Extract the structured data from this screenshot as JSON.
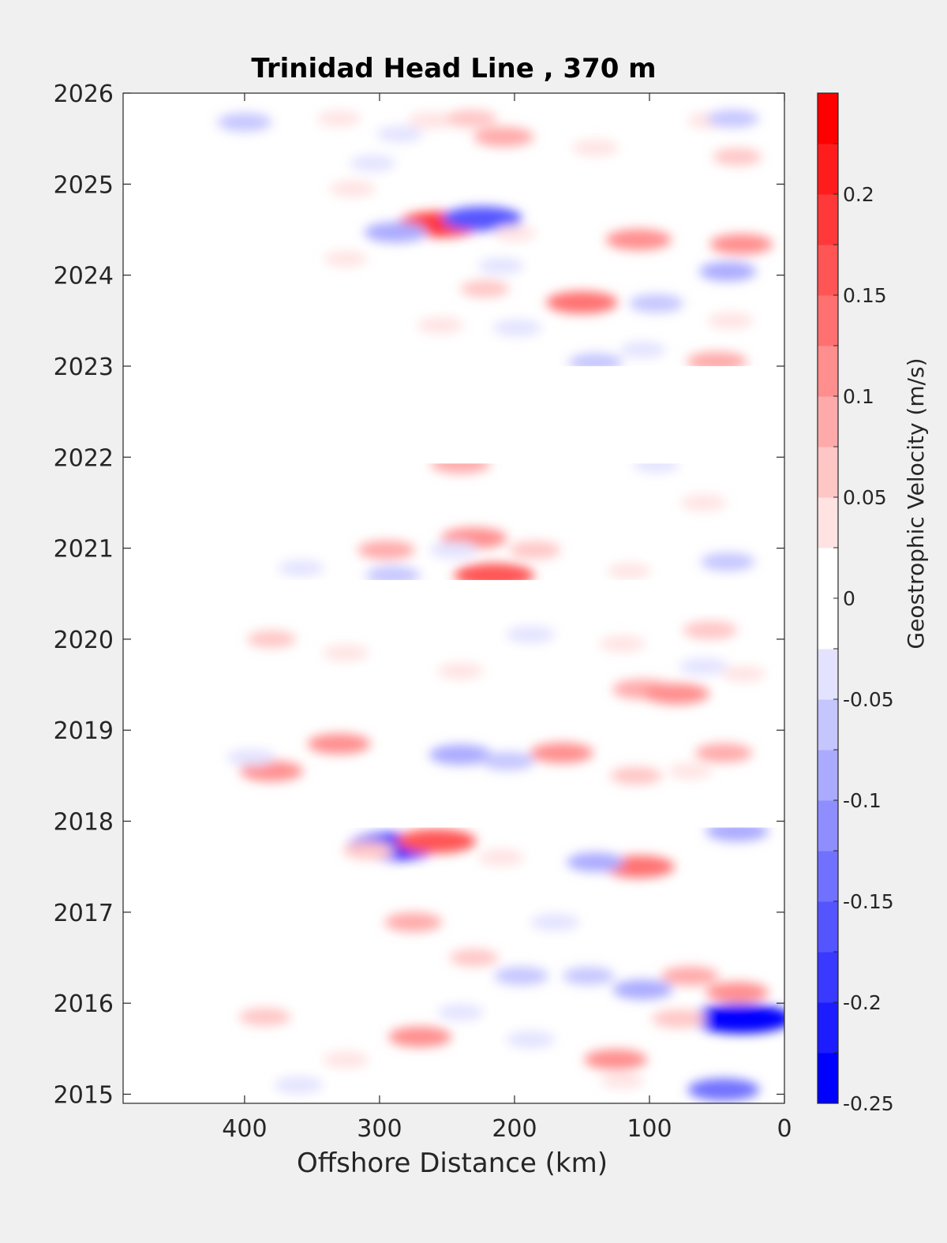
{
  "chart_data": {
    "type": "heatmap",
    "title": "Trinidad Head Line , 370 m",
    "xlabel": "Offshore Distance (km)",
    "ylabel": "",
    "x_ticks": [
      "400",
      "300",
      "200",
      "100",
      "0"
    ],
    "y_ticks": [
      "2026",
      "2025",
      "2024",
      "2023",
      "2022",
      "2021",
      "2020",
      "2019",
      "2018",
      "2017",
      "2016",
      "2015"
    ],
    "xlim": [
      490,
      0
    ],
    "x_reversed": true,
    "ylim": [
      2014.9,
      2026.0
    ],
    "grid": false,
    "colorbar": {
      "label": "Geostrophic Velocity (m/s)",
      "ticks": [
        "0.2",
        "0.15",
        "0.1",
        "0.05",
        "0",
        "-0.05",
        "-0.1",
        "-0.15",
        "-0.2",
        "-0.25"
      ],
      "range": [
        -0.25,
        0.25
      ],
      "levels": 20,
      "colors": {
        "positive": "#ff0000",
        "zero": "#ffffff",
        "negative": "#0000ff"
      }
    },
    "data_coverage": {
      "x_range_km": [
        30,
        420
      ],
      "gaps": [
        [
          2020.65,
          2020.28
        ],
        [
          2023.0,
          2021.93
        ],
        [
          2017.93,
          2018.26
        ]
      ]
    },
    "features": [
      {
        "x": 400,
        "y": 2025.68,
        "v": -0.07
      },
      {
        "x": 330,
        "y": 2025.72,
        "v": 0.03
      },
      {
        "x": 262,
        "y": 2025.7,
        "v": 0.04
      },
      {
        "x": 232,
        "y": 2025.72,
        "v": 0.06
      },
      {
        "x": 208,
        "y": 2025.52,
        "v": 0.09
      },
      {
        "x": 285,
        "y": 2025.55,
        "v": -0.04
      },
      {
        "x": 140,
        "y": 2025.4,
        "v": 0.04
      },
      {
        "x": 55,
        "y": 2025.7,
        "v": 0.04
      },
      {
        "x": 38,
        "y": 2025.72,
        "v": -0.06
      },
      {
        "x": 35,
        "y": 2025.3,
        "v": 0.05
      },
      {
        "x": 305,
        "y": 2025.23,
        "v": -0.04
      },
      {
        "x": 320,
        "y": 2024.95,
        "v": 0.04
      },
      {
        "x": 255,
        "y": 2024.56,
        "v": 0.18
      },
      {
        "x": 224,
        "y": 2024.62,
        "v": -0.16
      },
      {
        "x": 288,
        "y": 2024.47,
        "v": -0.1
      },
      {
        "x": 200,
        "y": 2024.46,
        "v": 0.03
      },
      {
        "x": 108,
        "y": 2024.39,
        "v": 0.11
      },
      {
        "x": 32,
        "y": 2024.34,
        "v": 0.1
      },
      {
        "x": 42,
        "y": 2024.04,
        "v": -0.08
      },
      {
        "x": 325,
        "y": 2024.18,
        "v": 0.03
      },
      {
        "x": 210,
        "y": 2024.1,
        "v": -0.04
      },
      {
        "x": 150,
        "y": 2023.7,
        "v": 0.13
      },
      {
        "x": 222,
        "y": 2023.85,
        "v": 0.05
      },
      {
        "x": 95,
        "y": 2023.69,
        "v": -0.07
      },
      {
        "x": 255,
        "y": 2023.45,
        "v": 0.04
      },
      {
        "x": 198,
        "y": 2023.42,
        "v": -0.05
      },
      {
        "x": 50,
        "y": 2023.05,
        "v": 0.09
      },
      {
        "x": 140,
        "y": 2023.04,
        "v": -0.07
      },
      {
        "x": 105,
        "y": 2023.18,
        "v": -0.04
      },
      {
        "x": 40,
        "y": 2023.5,
        "v": 0.04
      },
      {
        "x": 240,
        "y": 2021.93,
        "v": 0.09
      },
      {
        "x": 95,
        "y": 2021.92,
        "v": -0.04
      },
      {
        "x": 60,
        "y": 2021.5,
        "v": 0.04
      },
      {
        "x": 230,
        "y": 2021.11,
        "v": 0.11
      },
      {
        "x": 295,
        "y": 2020.98,
        "v": 0.08
      },
      {
        "x": 185,
        "y": 2020.98,
        "v": 0.06
      },
      {
        "x": 245,
        "y": 2020.98,
        "v": -0.05
      },
      {
        "x": 215,
        "y": 2020.7,
        "v": 0.16
      },
      {
        "x": 290,
        "y": 2020.7,
        "v": -0.07
      },
      {
        "x": 358,
        "y": 2020.78,
        "v": -0.04
      },
      {
        "x": 42,
        "y": 2020.85,
        "v": -0.07
      },
      {
        "x": 115,
        "y": 2020.75,
        "v": 0.03
      },
      {
        "x": 380,
        "y": 2020.0,
        "v": 0.05
      },
      {
        "x": 325,
        "y": 2019.85,
        "v": 0.04
      },
      {
        "x": 240,
        "y": 2019.65,
        "v": 0.04
      },
      {
        "x": 188,
        "y": 2020.05,
        "v": -0.05
      },
      {
        "x": 120,
        "y": 2019.95,
        "v": 0.04
      },
      {
        "x": 55,
        "y": 2020.1,
        "v": 0.07
      },
      {
        "x": 60,
        "y": 2019.7,
        "v": -0.05
      },
      {
        "x": 30,
        "y": 2019.62,
        "v": 0.03
      },
      {
        "x": 105,
        "y": 2019.45,
        "v": 0.09
      },
      {
        "x": 80,
        "y": 2019.4,
        "v": 0.11
      },
      {
        "x": 330,
        "y": 2018.85,
        "v": 0.1
      },
      {
        "x": 240,
        "y": 2018.73,
        "v": -0.1
      },
      {
        "x": 205,
        "y": 2018.66,
        "v": -0.07
      },
      {
        "x": 165,
        "y": 2018.75,
        "v": 0.1
      },
      {
        "x": 110,
        "y": 2018.5,
        "v": 0.06
      },
      {
        "x": 380,
        "y": 2018.55,
        "v": 0.1
      },
      {
        "x": 395,
        "y": 2018.7,
        "v": -0.05
      },
      {
        "x": 45,
        "y": 2018.75,
        "v": 0.08
      },
      {
        "x": 70,
        "y": 2018.55,
        "v": 0.03
      },
      {
        "x": 290,
        "y": 2017.72,
        "v": -0.2
      },
      {
        "x": 258,
        "y": 2017.78,
        "v": 0.16
      },
      {
        "x": 308,
        "y": 2017.68,
        "v": 0.06
      },
      {
        "x": 210,
        "y": 2017.6,
        "v": 0.04
      },
      {
        "x": 108,
        "y": 2017.5,
        "v": 0.13
      },
      {
        "x": 140,
        "y": 2017.55,
        "v": -0.08
      },
      {
        "x": 35,
        "y": 2017.89,
        "v": -0.1
      },
      {
        "x": 275,
        "y": 2016.89,
        "v": 0.08
      },
      {
        "x": 170,
        "y": 2016.89,
        "v": -0.05
      },
      {
        "x": 230,
        "y": 2016.5,
        "v": 0.05
      },
      {
        "x": 70,
        "y": 2016.3,
        "v": 0.08
      },
      {
        "x": 35,
        "y": 2016.12,
        "v": 0.1
      },
      {
        "x": 145,
        "y": 2016.3,
        "v": -0.06
      },
      {
        "x": 105,
        "y": 2016.15,
        "v": -0.09
      },
      {
        "x": 195,
        "y": 2016.3,
        "v": -0.07
      },
      {
        "x": 32,
        "y": 2015.83,
        "v": -0.24
      },
      {
        "x": 78,
        "y": 2015.83,
        "v": 0.07
      },
      {
        "x": 385,
        "y": 2015.85,
        "v": 0.06
      },
      {
        "x": 270,
        "y": 2015.63,
        "v": 0.1
      },
      {
        "x": 188,
        "y": 2015.6,
        "v": -0.05
      },
      {
        "x": 240,
        "y": 2015.9,
        "v": -0.04
      },
      {
        "x": 125,
        "y": 2015.38,
        "v": 0.1
      },
      {
        "x": 325,
        "y": 2015.38,
        "v": 0.04
      },
      {
        "x": 45,
        "y": 2015.05,
        "v": -0.13
      },
      {
        "x": 360,
        "y": 2015.1,
        "v": -0.05
      },
      {
        "x": 120,
        "y": 2015.15,
        "v": 0.03
      }
    ]
  }
}
